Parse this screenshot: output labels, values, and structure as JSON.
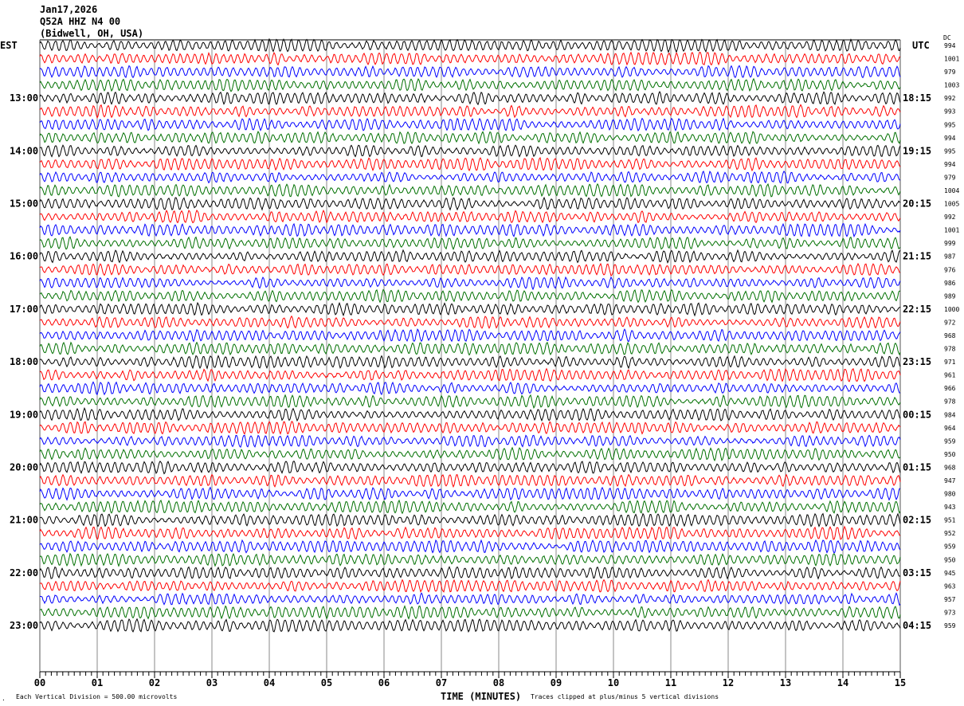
{
  "header": {
    "date": "Jan17,2026",
    "station": "Q52A HHZ N4 00",
    "location": "(Bidwell, OH, USA)"
  },
  "left_zone_label": "EST",
  "right_zone_label": "UTC",
  "dc_label": "DC",
  "footer": {
    "scale_note": "Each Vertical Division =  500.00 microvolts",
    "clip_note": "Traces clipped at plus/minus 5 vertical divisions",
    "corner_mark": "."
  },
  "chart_data": {
    "type": "line",
    "xlabel": "TIME (MINUTES)",
    "xlim": [
      0,
      15
    ],
    "x_ticks": [
      "00",
      "01",
      "02",
      "03",
      "04",
      "05",
      "06",
      "07",
      "08",
      "09",
      "10",
      "11",
      "12",
      "13",
      "14",
      "15"
    ],
    "minor_ticks_per_minute": 10,
    "grid": "vertical lines every minute",
    "trace_count": 45,
    "trace_minutes": 15,
    "trace_colors": [
      "#000000",
      "#ff0000",
      "#0000ff",
      "#007000"
    ],
    "left_time_labels": [
      {
        "trace": 4,
        "label": "13:00"
      },
      {
        "trace": 8,
        "label": "14:00"
      },
      {
        "trace": 12,
        "label": "15:00"
      },
      {
        "trace": 16,
        "label": "16:00"
      },
      {
        "trace": 20,
        "label": "17:00"
      },
      {
        "trace": 24,
        "label": "18:00"
      },
      {
        "trace": 28,
        "label": "19:00"
      },
      {
        "trace": 32,
        "label": "20:00"
      },
      {
        "trace": 36,
        "label": "21:00"
      },
      {
        "trace": 40,
        "label": "22:00"
      },
      {
        "trace": 44,
        "label": "23:00"
      }
    ],
    "right_time_labels": [
      {
        "trace": 4,
        "label": "18:15"
      },
      {
        "trace": 8,
        "label": "19:15"
      },
      {
        "trace": 12,
        "label": "20:15"
      },
      {
        "trace": 16,
        "label": "21:15"
      },
      {
        "trace": 20,
        "label": "22:15"
      },
      {
        "trace": 24,
        "label": "23:15"
      },
      {
        "trace": 28,
        "label": "00:15"
      },
      {
        "trace": 32,
        "label": "01:15"
      },
      {
        "trace": 36,
        "label": "02:15"
      },
      {
        "trace": 40,
        "label": "03:15"
      },
      {
        "trace": 44,
        "label": "04:15"
      }
    ],
    "dc_offsets": [
      994,
      1001,
      979,
      1003,
      992,
      993,
      995,
      994,
      995,
      994,
      979,
      1004,
      1005,
      992,
      1001,
      999,
      987,
      976,
      986,
      989,
      1000,
      972,
      968,
      978,
      971,
      961,
      966,
      978,
      984,
      964,
      959,
      950,
      968,
      947,
      980,
      943,
      951,
      952,
      959,
      950,
      945,
      963,
      957,
      973,
      959
    ]
  }
}
